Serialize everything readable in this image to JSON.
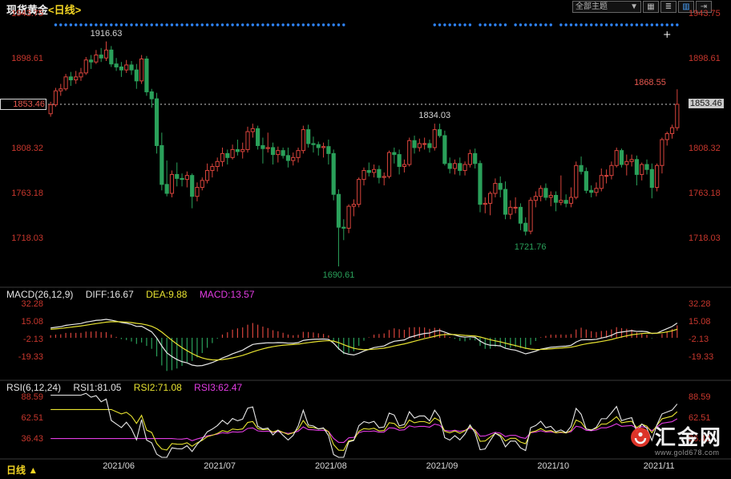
{
  "header": {
    "title": "现货黄金",
    "period_tag": "<日线>",
    "theme_dropdown": "全部主题",
    "dropdown_arrow": "▼",
    "icons": [
      "▦",
      "≣",
      "▥",
      "⇥"
    ]
  },
  "price_axis": {
    "labels": [
      "1943.75",
      "1898.61",
      "1853.46",
      "1808.32",
      "1763.18",
      "1718.03"
    ],
    "highlight_label": "1853.46"
  },
  "macd": {
    "title": "MACD(26,12,9)",
    "diff": "DIFF:16.67",
    "dea": "DEA:9.88",
    "macd": "MACD:13.57",
    "axis": [
      "32.28",
      "15.08",
      "-2.13",
      "-19.33"
    ]
  },
  "rsi": {
    "title": "RSI(6,12,24)",
    "rsi1": "RSI1:81.05",
    "rsi2": "RSI2:71.08",
    "rsi3": "RSI3:62.47",
    "axis": [
      "88.59",
      "62.51",
      "36.43"
    ]
  },
  "footer": {
    "period_label": "日线",
    "arrow": "▲"
  },
  "watermark": {
    "name": "汇金网",
    "url": "www.gold678.com"
  },
  "annotations": [
    {
      "label": "1916.63",
      "index": 11,
      "price": 1916.63,
      "placement": "above",
      "color": "gray"
    },
    {
      "label": "1868.55",
      "index": 124,
      "price": 1868.55,
      "placement": "left",
      "color": "red"
    },
    {
      "label": "1834.03",
      "index": 76,
      "price": 1834.03,
      "placement": "above",
      "color": "gray"
    },
    {
      "label": "1721.76",
      "index": 94,
      "price": 1721.76,
      "placement": "below-right",
      "color": "green"
    },
    {
      "label": "1690.61",
      "index": 57,
      "price": 1690.61,
      "placement": "below",
      "color": "green"
    }
  ],
  "colors": {
    "up": "#d8443c",
    "down": "#2aa05a",
    "dot": "#2f86ff",
    "axis_text": "#c8372d",
    "diff_line": "#e8e8e8",
    "dea_line": "#e8e331",
    "rsi1": "#e8e8e8",
    "rsi2": "#e8e331",
    "rsi3": "#e23ce2",
    "dotted_price_line": "#cfcfcf",
    "separator": "#3a3a3a",
    "annotation_gray": "#d6d6d6",
    "annotation_red": "#e8584f",
    "annotation_green": "#2aa05a",
    "watermark_red": "#e8372c"
  },
  "chart_data": {
    "type": "candlestick",
    "symbol": "现货黄金",
    "period": "日线",
    "title": "现货黄金<日线>",
    "current_price": 1853.46,
    "price_axis_values": [
      1943.75,
      1898.61,
      1853.46,
      1808.32,
      1763.18,
      1718.03
    ],
    "macd_axis_values": [
      32.28,
      15.08,
      -2.13,
      -19.33
    ],
    "rsi_axis_values": [
      88.59,
      62.51,
      36.43
    ],
    "macd_display": {
      "diff": 16.67,
      "dea": 9.88,
      "macd": 13.57
    },
    "rsi_display": {
      "rsi1": 81.05,
      "rsi2": 71.08,
      "rsi3": 62.47
    },
    "month_labels": [
      {
        "label": "2021/06",
        "index": 10
      },
      {
        "label": "2021/07",
        "index": 30
      },
      {
        "label": "2021/08",
        "index": 52
      },
      {
        "label": "2021/09",
        "index": 74
      },
      {
        "label": "2021/10",
        "index": 96
      },
      {
        "label": "2021/11",
        "index": 117
      }
    ],
    "event_dot_ranges": [
      [
        1,
        55
      ],
      [
        56,
        58
      ],
      [
        76,
        83
      ],
      [
        85,
        90
      ],
      [
        92,
        99
      ],
      [
        101,
        124
      ]
    ],
    "cursor_cross_index": 122,
    "ohlc": [
      [
        1844,
        1856,
        1841,
        1853
      ],
      [
        1853,
        1870,
        1851,
        1867
      ],
      [
        1867,
        1874,
        1862,
        1869
      ],
      [
        1869,
        1884,
        1867,
        1881
      ],
      [
        1881,
        1886,
        1872,
        1878
      ],
      [
        1878,
        1887,
        1874,
        1881
      ],
      [
        1881,
        1890,
        1877,
        1885
      ],
      [
        1885,
        1901,
        1883,
        1898
      ],
      [
        1898,
        1903,
        1889,
        1896
      ],
      [
        1896,
        1908,
        1894,
        1903
      ],
      [
        1903,
        1910,
        1896,
        1900
      ],
      [
        1900,
        1916.63,
        1897,
        1908
      ],
      [
        1908,
        1912,
        1891,
        1894
      ],
      [
        1894,
        1900,
        1887,
        1891
      ],
      [
        1891,
        1896,
        1881,
        1888
      ],
      [
        1888,
        1898,
        1885,
        1893
      ],
      [
        1893,
        1897,
        1883,
        1888
      ],
      [
        1888,
        1894,
        1869,
        1877
      ],
      [
        1877,
        1903,
        1874,
        1899
      ],
      [
        1899,
        1902,
        1862,
        1866
      ],
      [
        1866,
        1869,
        1850,
        1859
      ],
      [
        1859,
        1865,
        1804,
        1812
      ],
      [
        1812,
        1825,
        1767,
        1773
      ],
      [
        1773,
        1797,
        1761,
        1764
      ],
      [
        1764,
        1787,
        1760,
        1783
      ],
      [
        1783,
        1795,
        1771,
        1779
      ],
      [
        1779,
        1784,
        1771,
        1778
      ],
      [
        1778,
        1786,
        1770,
        1782
      ],
      [
        1782,
        1784,
        1749,
        1761
      ],
      [
        1761,
        1775,
        1756,
        1770
      ],
      [
        1770,
        1780,
        1767,
        1777
      ],
      [
        1777,
        1794,
        1774,
        1787
      ],
      [
        1787,
        1794,
        1780,
        1791
      ],
      [
        1791,
        1800,
        1786,
        1796
      ],
      [
        1796,
        1810,
        1791,
        1804
      ],
      [
        1804,
        1808,
        1793,
        1800
      ],
      [
        1800,
        1813,
        1798,
        1808
      ],
      [
        1808,
        1818,
        1802,
        1806
      ],
      [
        1806,
        1815,
        1799,
        1808
      ],
      [
        1808,
        1831,
        1805,
        1826
      ],
      [
        1826,
        1834,
        1820,
        1829
      ],
      [
        1829,
        1832,
        1808,
        1812
      ],
      [
        1812,
        1820,
        1794,
        1809
      ],
      [
        1809,
        1825,
        1805,
        1810
      ],
      [
        1810,
        1815,
        1793,
        1803
      ],
      [
        1803,
        1811,
        1795,
        1807
      ],
      [
        1807,
        1810,
        1799,
        1802
      ],
      [
        1802,
        1810,
        1790,
        1797
      ],
      [
        1797,
        1805,
        1792,
        1800
      ],
      [
        1800,
        1810,
        1795,
        1807
      ],
      [
        1807,
        1832,
        1804,
        1828
      ],
      [
        1828,
        1833,
        1810,
        1814
      ],
      [
        1814,
        1821,
        1805,
        1813
      ],
      [
        1813,
        1816,
        1802,
        1810
      ],
      [
        1810,
        1815,
        1800,
        1811
      ],
      [
        1811,
        1818,
        1793,
        1804
      ],
      [
        1804,
        1808,
        1757,
        1763
      ],
      [
        1763,
        1768,
        1690.61,
        1730
      ],
      [
        1730,
        1738,
        1717,
        1729
      ],
      [
        1729,
        1753,
        1724,
        1751
      ],
      [
        1751,
        1758,
        1741,
        1753
      ],
      [
        1753,
        1780,
        1750,
        1778
      ],
      [
        1778,
        1790,
        1772,
        1787
      ],
      [
        1787,
        1795,
        1781,
        1785
      ],
      [
        1785,
        1793,
        1780,
        1788
      ],
      [
        1788,
        1792,
        1774,
        1780
      ],
      [
        1780,
        1785,
        1772,
        1781
      ],
      [
        1781,
        1807,
        1779,
        1805
      ],
      [
        1805,
        1810,
        1794,
        1803
      ],
      [
        1803,
        1808,
        1783,
        1791
      ],
      [
        1791,
        1798,
        1785,
        1793
      ],
      [
        1793,
        1820,
        1791,
        1817
      ],
      [
        1817,
        1822,
        1804,
        1810
      ],
      [
        1810,
        1819,
        1806,
        1814
      ],
      [
        1814,
        1820,
        1808,
        1814
      ],
      [
        1814,
        1818,
        1805,
        1810
      ],
      [
        1810,
        1834.03,
        1807,
        1828
      ],
      [
        1828,
        1834,
        1820,
        1822
      ],
      [
        1822,
        1827,
        1792,
        1794
      ],
      [
        1794,
        1800,
        1784,
        1789
      ],
      [
        1789,
        1798,
        1783,
        1794
      ],
      [
        1794,
        1800,
        1782,
        1787
      ],
      [
        1787,
        1796,
        1782,
        1793
      ],
      [
        1793,
        1808,
        1790,
        1804
      ],
      [
        1804,
        1809,
        1789,
        1794
      ],
      [
        1794,
        1797,
        1745,
        1753
      ],
      [
        1753,
        1760,
        1744,
        1754
      ],
      [
        1754,
        1766,
        1742,
        1764
      ],
      [
        1764,
        1779,
        1760,
        1774
      ],
      [
        1774,
        1781,
        1760,
        1768
      ],
      [
        1768,
        1776,
        1738,
        1743
      ],
      [
        1743,
        1757,
        1738,
        1750
      ],
      [
        1750,
        1760,
        1744,
        1750
      ],
      [
        1750,
        1754,
        1727,
        1734
      ],
      [
        1734,
        1740,
        1721.76,
        1726
      ],
      [
        1726,
        1760,
        1723,
        1757
      ],
      [
        1757,
        1766,
        1750,
        1761
      ],
      [
        1761,
        1772,
        1756,
        1769
      ],
      [
        1769,
        1774,
        1757,
        1760
      ],
      [
        1760,
        1766,
        1751,
        1762
      ],
      [
        1762,
        1766,
        1746,
        1755
      ],
      [
        1755,
        1782,
        1752,
        1757
      ],
      [
        1757,
        1763,
        1750,
        1754
      ],
      [
        1754,
        1770,
        1750,
        1760
      ],
      [
        1760,
        1796,
        1758,
        1792
      ],
      [
        1792,
        1801,
        1783,
        1786
      ],
      [
        1786,
        1790,
        1764,
        1767
      ],
      [
        1767,
        1772,
        1760,
        1765
      ],
      [
        1765,
        1775,
        1761,
        1769
      ],
      [
        1769,
        1789,
        1766,
        1782
      ],
      [
        1782,
        1788,
        1774,
        1782
      ],
      [
        1782,
        1796,
        1778,
        1792
      ],
      [
        1792,
        1810,
        1790,
        1807
      ],
      [
        1807,
        1809,
        1790,
        1793
      ],
      [
        1793,
        1803,
        1782,
        1796
      ],
      [
        1796,
        1803,
        1791,
        1798
      ],
      [
        1798,
        1802,
        1772,
        1783
      ],
      [
        1783,
        1795,
        1777,
        1793
      ],
      [
        1793,
        1798,
        1783,
        1788
      ],
      [
        1788,
        1794,
        1759,
        1770
      ],
      [
        1770,
        1794,
        1766,
        1792
      ],
      [
        1792,
        1820,
        1784,
        1818
      ],
      [
        1818,
        1826,
        1812,
        1824
      ],
      [
        1824,
        1833,
        1819,
        1830
      ],
      [
        1830,
        1868.55,
        1827,
        1853.46
      ]
    ]
  }
}
